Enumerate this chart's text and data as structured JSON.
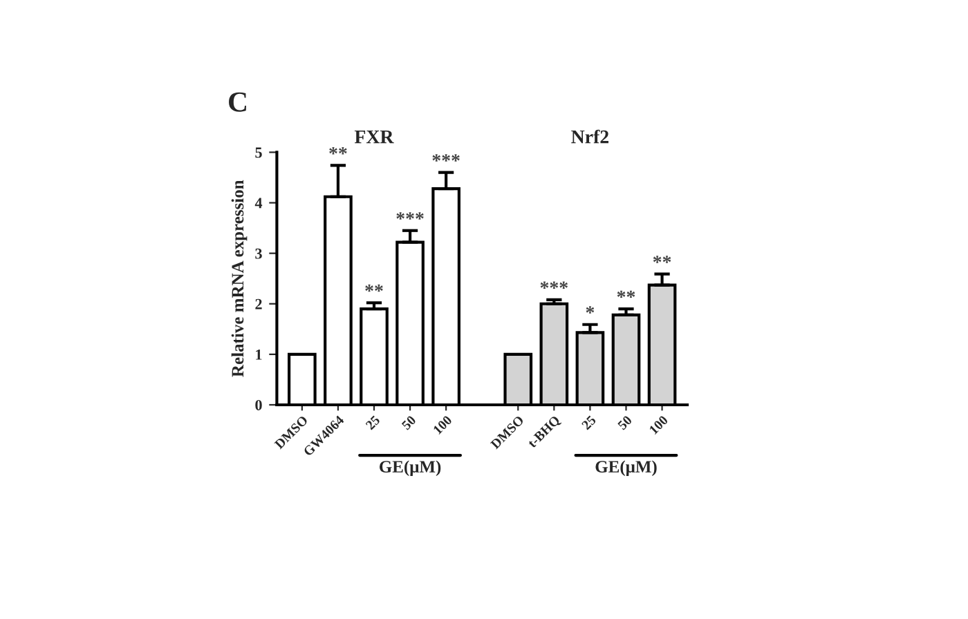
{
  "chart_data": {
    "type": "bar",
    "ylabel": "Relative mRNA expression",
    "categories": [
      "DMSO",
      "GW4064",
      "25",
      "50",
      "100",
      null,
      "DMSO",
      "t-BHQ",
      "25",
      "50",
      "100"
    ],
    "series": [
      {
        "colors": [
          "#ffffff",
          "#ffffff",
          "#ffffff",
          "#ffffff",
          "#ffffff",
          "#ffffff",
          "#d3d3d3",
          "#d3d3d3",
          "#d3d3d3",
          "#d3d3d3",
          "#d3d3d3"
        ],
        "values": [
          1,
          4.12,
          1.9,
          3.22,
          4.28,
          null,
          1,
          2.0,
          1.43,
          1.78,
          2.37
        ],
        "errors": [
          null,
          0.62,
          0.12,
          0.23,
          0.32,
          null,
          null,
          0.08,
          0.16,
          0.12,
          0.22
        ],
        "value_labels": [
          null,
          "**",
          "**",
          "***",
          "***",
          null,
          null,
          "***",
          "*",
          "**",
          "**"
        ]
      }
    ],
    "ylim": [
      0,
      5
    ],
    "yticks": [
      0,
      1,
      2,
      3,
      4,
      5
    ],
    "grid": false,
    "legend": false,
    "annotations": [
      "C",
      "FXR",
      "Nrf2",
      "GE(μM)",
      "GE(μM)"
    ]
  }
}
